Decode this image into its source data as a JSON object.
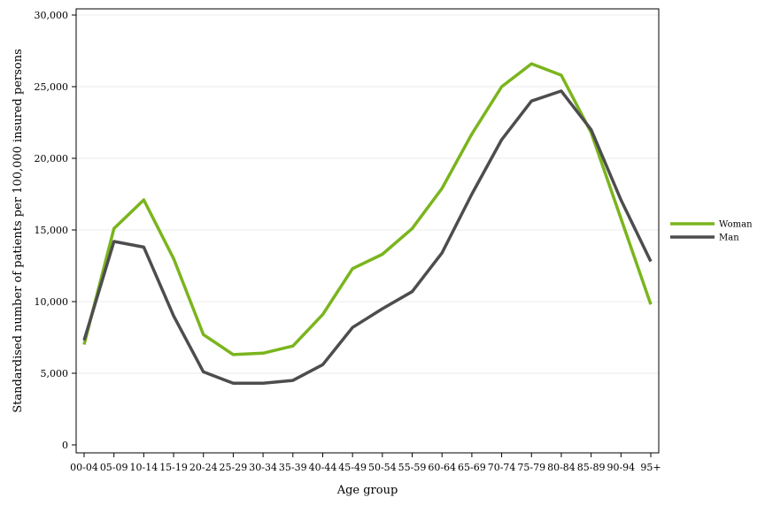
{
  "chart_data": {
    "type": "line",
    "title": "",
    "xlabel": "Age group",
    "ylabel": "Standardised number of patients per 100,000 insured persons",
    "ylim": [
      0,
      30000
    ],
    "yticks": [
      0,
      5000,
      10000,
      15000,
      20000,
      25000,
      30000
    ],
    "ytick_labels": [
      "0",
      "5,000",
      "10,000",
      "15,000",
      "20,000",
      "25,000",
      "30,000"
    ],
    "grid": "horizontal",
    "legend_position": "right",
    "categories": [
      "00-04",
      "05-09",
      "10-14",
      "15-19",
      "20-24",
      "25-29",
      "30-34",
      "35-39",
      "40-44",
      "45-49",
      "50-54",
      "55-59",
      "60-64",
      "65-69",
      "70-74",
      "75-79",
      "80-84",
      "85-89",
      "90-94",
      "95+"
    ],
    "series": [
      {
        "name": "Woman",
        "color": "#7ab51d",
        "values": [
          7000,
          15100,
          17100,
          13000,
          7700,
          6300,
          6400,
          6900,
          9100,
          12300,
          13300,
          15100,
          17900,
          21700,
          25000,
          26600,
          25800,
          21800,
          15800,
          9800
        ]
      },
      {
        "name": "Man",
        "color": "#4d4d4f",
        "values": [
          7300,
          14200,
          13800,
          9000,
          5100,
          4300,
          4300,
          4500,
          5600,
          8200,
          9500,
          10700,
          13400,
          17500,
          21300,
          24000,
          24700,
          22000,
          17100,
          12800
        ]
      }
    ]
  }
}
